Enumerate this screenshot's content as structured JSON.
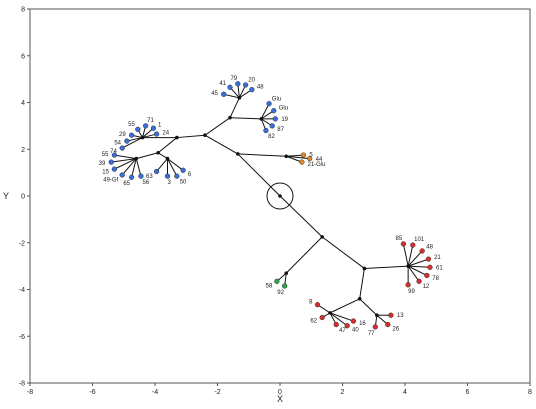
{
  "chart_data": {
    "type": "scatter",
    "title": "",
    "xlabel": "X",
    "ylabel": "Y",
    "xlim": [
      -8,
      8
    ],
    "ylim": [
      -8,
      8
    ],
    "x_ticks": [
      -8,
      -6,
      -4,
      -2,
      0,
      2,
      4,
      6,
      8
    ],
    "y_ticks": [
      -8,
      -6,
      -4,
      -2,
      0,
      2,
      4,
      6,
      8
    ],
    "grid": false,
    "colors": {
      "black": "#111111",
      "blue": "#3a6fd8",
      "orange": "#d98a2a",
      "red": "#d43030",
      "green": "#2fa34a"
    },
    "root": {
      "x": 0.0,
      "y": 0.0,
      "circled": true
    },
    "branch_points": [
      {
        "id": "r",
        "x": 0.0,
        "y": 0.0
      },
      {
        "id": "u1",
        "x": -1.35,
        "y": 1.8
      },
      {
        "id": "u2",
        "x": -2.4,
        "y": 2.6
      },
      {
        "id": "u3",
        "x": -3.3,
        "y": 2.5
      },
      {
        "id": "u4",
        "x": -3.9,
        "y": 1.85
      },
      {
        "id": "u5",
        "x": -4.4,
        "y": 2.5
      },
      {
        "id": "u6",
        "x": -4.6,
        "y": 1.6
      },
      {
        "id": "u7",
        "x": -3.6,
        "y": 1.6
      },
      {
        "id": "u8",
        "x": -1.6,
        "y": 3.35
      },
      {
        "id": "u9",
        "x": -1.3,
        "y": 4.2
      },
      {
        "id": "u10",
        "x": -0.6,
        "y": 3.3
      },
      {
        "id": "u11",
        "x": 0.2,
        "y": 1.7
      },
      {
        "id": "d1",
        "x": 1.35,
        "y": -1.75
      },
      {
        "id": "d2",
        "x": 2.7,
        "y": -3.1
      },
      {
        "id": "d3",
        "x": 4.1,
        "y": -3.0
      },
      {
        "id": "d4",
        "x": 2.55,
        "y": -4.4
      },
      {
        "id": "d5",
        "x": 3.1,
        "y": -5.1
      },
      {
        "id": "d6",
        "x": 1.6,
        "y": -5.0
      },
      {
        "id": "g1",
        "x": 0.2,
        "y": -3.3
      }
    ],
    "edges": [
      [
        "r",
        "u1"
      ],
      [
        "u1",
        "u2"
      ],
      [
        "u2",
        "u3"
      ],
      [
        "u3",
        "u4"
      ],
      [
        "u3",
        "u5"
      ],
      [
        "u4",
        "u6"
      ],
      [
        "u4",
        "u7"
      ],
      [
        "u2",
        "u8"
      ],
      [
        "u8",
        "u9"
      ],
      [
        "u8",
        "u10"
      ],
      [
        "u1",
        "u11"
      ],
      [
        "r",
        "d1"
      ],
      [
        "d1",
        "d2"
      ],
      [
        "d2",
        "d3"
      ],
      [
        "d2",
        "d4"
      ],
      [
        "d4",
        "d5"
      ],
      [
        "d4",
        "d6"
      ],
      [
        "d1",
        "g1"
      ]
    ],
    "series": [
      {
        "color": "blue",
        "points": [
          {
            "x": -5.05,
            "y": 2.05,
            "parent": "u5",
            "label": "74"
          },
          {
            "x": -4.9,
            "y": 2.35,
            "parent": "u5",
            "label": "54"
          },
          {
            "x": -4.75,
            "y": 2.6,
            "parent": "u5",
            "label": "29"
          },
          {
            "x": -4.55,
            "y": 2.85,
            "parent": "u5",
            "label": "55"
          },
          {
            "x": -4.3,
            "y": 3.0,
            "parent": "u5",
            "label": "71"
          },
          {
            "x": -4.05,
            "y": 2.9,
            "parent": "u5",
            "label": "1"
          },
          {
            "x": -3.95,
            "y": 2.65,
            "parent": "u5",
            "label": "24"
          },
          {
            "x": -5.3,
            "y": 1.75,
            "parent": "u6",
            "label": "55"
          },
          {
            "x": -5.4,
            "y": 1.45,
            "parent": "u6",
            "label": "39"
          },
          {
            "x": -5.3,
            "y": 1.15,
            "parent": "u6",
            "label": "15"
          },
          {
            "x": -5.05,
            "y": 0.9,
            "parent": "u6",
            "label": "49-Gf"
          },
          {
            "x": -4.75,
            "y": 0.8,
            "parent": "u6",
            "label": "65"
          },
          {
            "x": -4.45,
            "y": 0.85,
            "parent": "u6",
            "label": "56"
          },
          {
            "x": -3.95,
            "y": 1.05,
            "parent": "u7",
            "label": "63"
          },
          {
            "x": -3.6,
            "y": 0.85,
            "parent": "u7",
            "label": "3"
          },
          {
            "x": -3.3,
            "y": 0.85,
            "parent": "u7",
            "label": "50"
          },
          {
            "x": -3.1,
            "y": 1.1,
            "parent": "u7",
            "label": "6"
          },
          {
            "x": -1.8,
            "y": 4.35,
            "parent": "u9",
            "label": "45"
          },
          {
            "x": -1.6,
            "y": 4.65,
            "parent": "u9",
            "label": "41"
          },
          {
            "x": -1.35,
            "y": 4.8,
            "parent": "u9",
            "label": "79"
          },
          {
            "x": -1.1,
            "y": 4.75,
            "parent": "u9",
            "label": "20"
          },
          {
            "x": -0.9,
            "y": 4.55,
            "parent": "u9",
            "label": "48"
          },
          {
            "x": -0.35,
            "y": 3.95,
            "parent": "u10",
            "label": "Glu"
          },
          {
            "x": -0.2,
            "y": 3.65,
            "parent": "u10",
            "label": "Glu"
          },
          {
            "x": -0.15,
            "y": 3.3,
            "parent": "u10",
            "label": "19"
          },
          {
            "x": -0.25,
            "y": 3.0,
            "parent": "u10",
            "label": "87"
          },
          {
            "x": -0.45,
            "y": 2.8,
            "parent": "u10",
            "label": "82"
          }
        ]
      },
      {
        "color": "orange",
        "points": [
          {
            "x": 0.75,
            "y": 1.75,
            "parent": "u11",
            "label": "5"
          },
          {
            "x": 0.7,
            "y": 1.45,
            "parent": "u11",
            "label": "21-Glu"
          },
          {
            "x": 0.95,
            "y": 1.6,
            "parent": "u11",
            "label": "44"
          }
        ]
      },
      {
        "color": "red",
        "points": [
          {
            "x": 3.95,
            "y": -2.05,
            "parent": "d3",
            "label": "85"
          },
          {
            "x": 4.25,
            "y": -2.1,
            "parent": "d3",
            "label": "101"
          },
          {
            "x": 4.55,
            "y": -2.35,
            "parent": "d3",
            "label": "48"
          },
          {
            "x": 4.75,
            "y": -2.7,
            "parent": "d3",
            "label": "21"
          },
          {
            "x": 4.8,
            "y": -3.05,
            "parent": "d3",
            "label": "61"
          },
          {
            "x": 4.7,
            "y": -3.4,
            "parent": "d3",
            "label": "78"
          },
          {
            "x": 4.45,
            "y": -3.65,
            "parent": "d3",
            "label": "12"
          },
          {
            "x": 4.1,
            "y": -3.8,
            "parent": "d3",
            "label": "99"
          },
          {
            "x": 3.55,
            "y": -5.1,
            "parent": "d5",
            "label": "13"
          },
          {
            "x": 3.45,
            "y": -5.5,
            "parent": "d5",
            "label": "26"
          },
          {
            "x": 3.05,
            "y": -5.6,
            "parent": "d5",
            "label": "77"
          },
          {
            "x": 1.2,
            "y": -4.65,
            "parent": "d6",
            "label": "8"
          },
          {
            "x": 1.35,
            "y": -5.2,
            "parent": "d6",
            "label": "62"
          },
          {
            "x": 1.8,
            "y": -5.5,
            "parent": "d6",
            "label": "47"
          },
          {
            "x": 2.15,
            "y": -5.55,
            "parent": "d6",
            "label": "40"
          },
          {
            "x": 2.35,
            "y": -5.35,
            "parent": "d6",
            "label": "16"
          }
        ]
      },
      {
        "color": "green",
        "points": [
          {
            "x": -0.1,
            "y": -3.65,
            "parent": "g1",
            "label": "58"
          },
          {
            "x": 0.15,
            "y": -3.85,
            "parent": "g1",
            "label": "92"
          }
        ]
      }
    ]
  }
}
